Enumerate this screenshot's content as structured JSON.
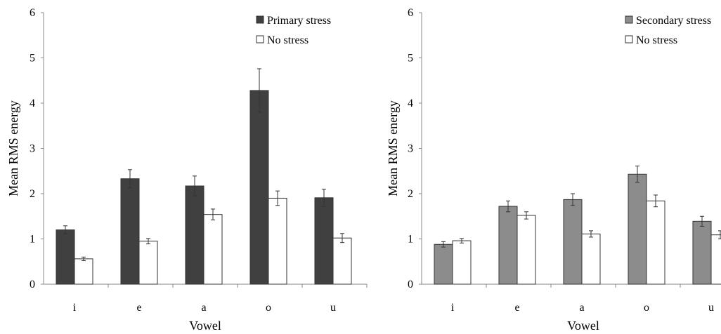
{
  "chart_data": [
    {
      "type": "bar",
      "xlabel": "Vowel",
      "ylabel": "Mean RMS energy",
      "ylim": [
        0,
        6
      ],
      "yticks": [
        "0",
        "1",
        "2",
        "3",
        "4",
        "5",
        "6"
      ],
      "categories": [
        "i",
        "e",
        "a",
        "o",
        "u"
      ],
      "grid": false,
      "legend_position": "top-right",
      "series": [
        {
          "name": "Primary stress",
          "color": "#404040",
          "values": [
            1.2,
            2.33,
            2.17,
            4.28,
            1.91
          ],
          "errors": [
            0.09,
            0.2,
            0.22,
            0.48,
            0.19
          ]
        },
        {
          "name": "No stress",
          "color": "#ffffff",
          "values": [
            0.56,
            0.95,
            1.54,
            1.9,
            1.02
          ],
          "errors": [
            0.04,
            0.06,
            0.12,
            0.16,
            0.1
          ]
        }
      ]
    },
    {
      "type": "bar",
      "xlabel": "Vowel",
      "ylabel": "Mean RMS energy",
      "ylim": [
        0,
        6
      ],
      "yticks": [
        "0",
        "1",
        "2",
        "3",
        "4",
        "5",
        "6"
      ],
      "categories": [
        "i",
        "e",
        "a",
        "o",
        "u"
      ],
      "grid": false,
      "legend_position": "top-right",
      "series": [
        {
          "name": "Secondary stress",
          "color": "#8c8c8c",
          "values": [
            0.88,
            1.72,
            1.87,
            2.43,
            1.39
          ],
          "errors": [
            0.06,
            0.12,
            0.13,
            0.18,
            0.11
          ]
        },
        {
          "name": "No stress",
          "color": "#ffffff",
          "values": [
            0.96,
            1.52,
            1.11,
            1.84,
            1.09
          ],
          "errors": [
            0.05,
            0.08,
            0.07,
            0.13,
            0.09
          ]
        }
      ]
    }
  ]
}
